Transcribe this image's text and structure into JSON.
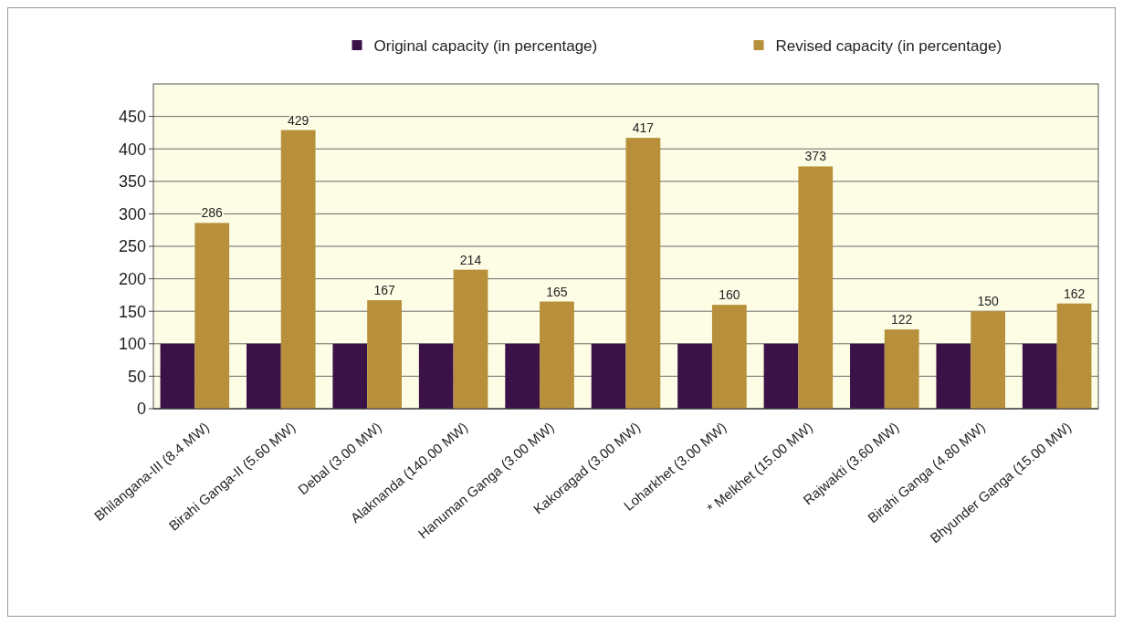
{
  "chart_data": {
    "type": "bar",
    "categories": [
      "Bhilangana-III (8.4 MW)",
      "Birahi Ganga-II (5.60 MW)",
      "Debal (3.00 MW)",
      "Alaknanda (140.00 MW)",
      "Hanuman Ganga (3.00 MW)",
      "Kakoragad (3.00 MW)",
      "Loharkhet (3.00 MW)",
      "* Melkhet (15.00 MW)",
      "Rajwakti (3.60 MW)",
      "Birahi Ganga (4.80 MW)",
      "Bhyunder Ganga (15.00 MW)"
    ],
    "series": [
      {
        "name": "Original capacity (in percentage)",
        "color": "#3b1248",
        "values": [
          100,
          100,
          100,
          100,
          100,
          100,
          100,
          100,
          100,
          100,
          100
        ]
      },
      {
        "name": "Revised capacity (in percentage)",
        "color": "#b8903c",
        "values": [
          286,
          429,
          167,
          214,
          165,
          417,
          160,
          373,
          122,
          150,
          162
        ],
        "value_labels": [
          "286",
          "429",
          "167",
          "214",
          "165",
          "417",
          "160",
          "373",
          "122",
          "150",
          "162"
        ]
      }
    ],
    "ylim": [
      0,
      500
    ],
    "yticks": [
      0,
      50,
      100,
      150,
      200,
      250,
      300,
      350,
      400,
      450
    ],
    "grid": "y",
    "legend": "top"
  }
}
